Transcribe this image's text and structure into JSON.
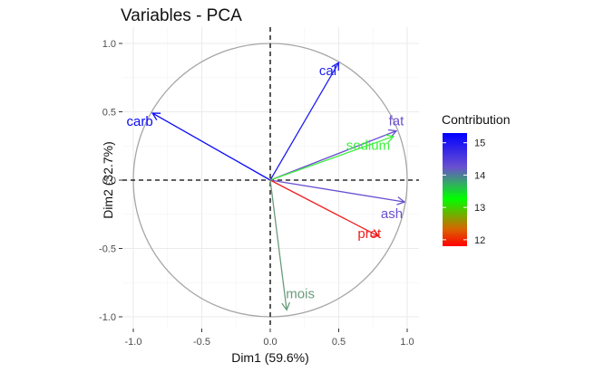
{
  "chart_data": {
    "type": "scatter",
    "title": "Variables - PCA",
    "xlabel": "Dim1 (59.6%)",
    "ylabel": "Dim2 (32.7%)",
    "xlim": [
      -1.0,
      1.0
    ],
    "ylim": [
      -1.0,
      1.0
    ],
    "x_ticks": [
      "-1.0",
      "-0.5",
      "0.0",
      "0.5",
      "1.0"
    ],
    "y_ticks": [
      "-1.0",
      "-0.5",
      "0.0",
      "0.5",
      "1.0"
    ],
    "grid": true,
    "correlation_circle": true,
    "reference_lines": [
      0,
      0
    ],
    "legend": {
      "title": "Contribution",
      "placement": "right",
      "range": [
        11.8,
        15.3
      ],
      "ticks": [
        12,
        13,
        14,
        15
      ],
      "gradient_colors": [
        "#ff0000",
        "#00ff00",
        "#0000ff"
      ]
    },
    "variables": [
      {
        "name": "cal",
        "x": 0.5,
        "y": 0.86,
        "color": "#2020f0"
      },
      {
        "name": "carb",
        "x": -0.86,
        "y": 0.49,
        "color": "#0a0af8"
      },
      {
        "name": "fat",
        "x": 0.92,
        "y": 0.36,
        "color": "#6a4fd0"
      },
      {
        "name": "sodium",
        "x": 0.9,
        "y": 0.32,
        "color": "#3df03d"
      },
      {
        "name": "ash",
        "x": 0.98,
        "y": -0.16,
        "color": "#6a4fd0"
      },
      {
        "name": "prot",
        "x": 0.79,
        "y": -0.41,
        "color": "#f01e1e"
      },
      {
        "name": "mois",
        "x": 0.12,
        "y": -0.95,
        "color": "#6b9a7c"
      }
    ]
  }
}
